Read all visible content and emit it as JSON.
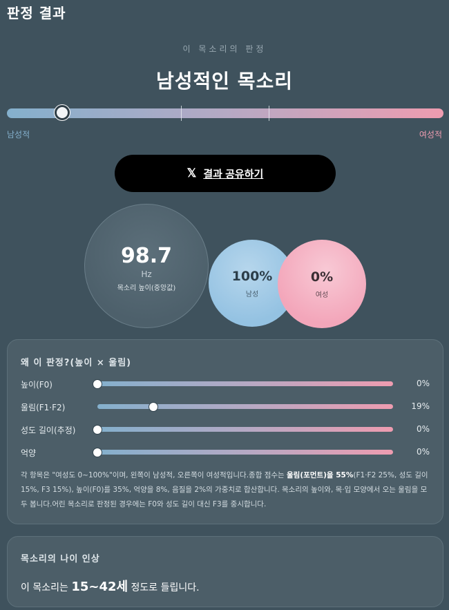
{
  "header": {
    "title": "판정 결과"
  },
  "verdict": {
    "eyebrow": "이 목소리의 판정",
    "title": "남성적인 목소리",
    "scale_position": 0.127,
    "left_label": "남성적",
    "right_label": "여성적"
  },
  "share": {
    "icon": "x-logo-icon",
    "label": "결과 공유하기"
  },
  "pitch": {
    "value": "98.7",
    "unit": "Hz",
    "caption": "목소리 높이(중앙값)"
  },
  "gender": {
    "male_pct": "100%",
    "male_label": "남성",
    "female_pct": "0%",
    "female_label": "여성"
  },
  "why": {
    "title": "왜 이 판정?(높이 × 울림)",
    "metrics": [
      {
        "label": "높이(F0)",
        "value": "0%",
        "level": 0
      },
      {
        "label": "울림(F1·F2)",
        "value": "19%",
        "level": 0.19
      },
      {
        "label": "성도 길이(추정)",
        "value": "0%",
        "level": 0
      },
      {
        "label": "억양",
        "value": "0%",
        "level": 0
      }
    ],
    "explain_a": "각 항목은 \"여성도 0~100%\"이며, 왼쪽이 남성적, 오른쪽이 여성적입니다.종합 점수는 ",
    "explain_b": "울림(포먼트)을 55%",
    "explain_c": "(F1·F2 25%, 성도 길이 15%, F3 15%), 높이(F0)를 35%, 억양을 8%, 음질을 2%의 가중치로 합산합니다. 목소리의 높이와, 목·입 모양에서 오는 울림을 모두 봅니다.어린 목소리로 판정된 경우에는 F0와 성도 길이 대신 F3를 중시합니다."
  },
  "age": {
    "title": "목소리의 나이 인상",
    "prefix": "이 목소리는 ",
    "range": "15~42세",
    "suffix": " 정도로 들립니다."
  }
}
